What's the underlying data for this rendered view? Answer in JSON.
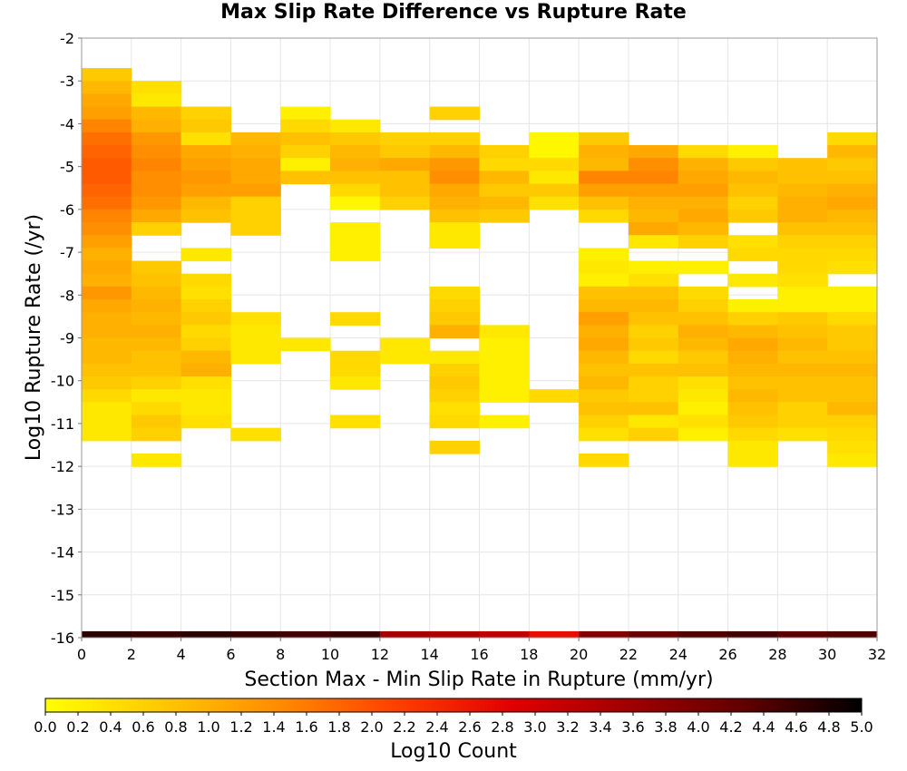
{
  "chart_data": {
    "type": "heatmap",
    "title": "Max Slip Rate Difference vs Rupture Rate",
    "xlabel": "Section Max - Min Slip Rate in Rupture (mm/yr)",
    "ylabel": "Log10 Rupture Rate (/yr)",
    "colorbar_label": "Log10 Count",
    "xlim": [
      0,
      32
    ],
    "ylim": [
      -16,
      -2
    ],
    "xticks": [
      0,
      2,
      4,
      6,
      8,
      10,
      12,
      14,
      16,
      18,
      20,
      22,
      24,
      26,
      28,
      30,
      32
    ],
    "yticks": [
      -2,
      -3,
      -4,
      -5,
      -6,
      -7,
      -8,
      -9,
      -10,
      -11,
      -12,
      -13,
      -14,
      -15,
      -16
    ],
    "clim": [
      0,
      5
    ],
    "colorbar_ticks": [
      0.0,
      0.2,
      0.4,
      0.6,
      0.8,
      1.0,
      1.2,
      1.4,
      1.6,
      1.8,
      2.0,
      2.2,
      2.4,
      2.6,
      2.8,
      3.0,
      3.2,
      3.4,
      3.6,
      3.8,
      4.0,
      4.2,
      4.4,
      4.6,
      4.8,
      5.0
    ],
    "colorbar_tick_labels": [
      "0.0",
      "0.2",
      "0.4",
      "0.6",
      "0.8",
      "1.0",
      "1.2",
      "1.4",
      "1.6",
      "1.8",
      "2.0",
      "2.2",
      "2.4",
      "2.6",
      "2.8",
      "3.0",
      "3.2",
      "3.4",
      "3.6",
      "3.8",
      "4.0",
      "4.2",
      "4.4",
      "4.6",
      "4.8",
      "5.0"
    ],
    "colormap": [
      "#ffff00",
      "#ffc800",
      "#ff8c00",
      "#ff4000",
      "#e00000",
      "#a00000",
      "#600000",
      "#000000"
    ],
    "grid": true,
    "y_bin": 0.3,
    "columns": [
      {
        "x0": 0,
        "x1": 2,
        "y_top": -2.7,
        "values": [
          0.7,
          0.9,
          1.1,
          1.2,
          1.5,
          1.7,
          1.8,
          1.9,
          1.9,
          1.8,
          1.7,
          1.5,
          1.4,
          1.2,
          1.0,
          1.1,
          1.0,
          1.3,
          1.1,
          1.0,
          1.0,
          0.9,
          0.9,
          0.8,
          0.7,
          0.5,
          0.3,
          0.3,
          0.3
        ]
      },
      {
        "x0": 2,
        "x1": 4,
        "y_top": -3.0,
        "values": [
          0.4,
          0.3,
          0.9,
          1.0,
          1.3,
          1.4,
          1.5,
          1.4,
          1.4,
          1.3,
          1.1,
          0.6,
          null,
          null,
          0.7,
          0.8,
          0.9,
          1.0,
          0.9,
          1.0,
          0.9,
          0.8,
          0.8,
          0.6,
          0.3,
          0.5,
          0.7,
          0.6,
          null,
          0.3
        ]
      },
      {
        "x0": 4,
        "x1": 6,
        "y_top": -3.6,
        "values": [
          0.6,
          0.7,
          0.4,
          1.1,
          1.2,
          1.3,
          1.2,
          0.9,
          0.8,
          null,
          null,
          0.3,
          null,
          0.5,
          0.4,
          0.6,
          0.7,
          0.5,
          0.6,
          0.9,
          1.0,
          0.4,
          0.3,
          0.3,
          0.4
        ]
      },
      {
        "x0": 6,
        "x1": 8,
        "y_top": -4.2,
        "values": [
          0.9,
          1.0,
          1.1,
          1.1,
          1.2,
          0.6,
          0.6,
          0.6,
          null,
          null,
          null,
          null,
          null,
          null,
          0.4,
          0.3,
          0.3,
          0.3,
          null,
          null,
          null,
          null,
          null,
          0.4
        ]
      },
      {
        "x0": 8,
        "x1": 10,
        "y_top": -3.6,
        "values": [
          0.2,
          0.5,
          0.8,
          0.6,
          0.2,
          0.8,
          null,
          null,
          null,
          null,
          null,
          null,
          null,
          null,
          null,
          null,
          null,
          null,
          0.3
        ]
      },
      {
        "x0": 10,
        "x1": 12,
        "y_top": -3.9,
        "values": [
          0.3,
          0.7,
          0.9,
          1.0,
          0.8,
          0.5,
          0.1,
          null,
          0.2,
          0.2,
          0.2,
          null,
          null,
          null,
          null,
          0.5,
          null,
          null,
          0.5,
          0.5,
          0.3,
          null,
          null,
          0.4
        ]
      },
      {
        "x0": 12,
        "x1": 14,
        "y_top": -4.2,
        "values": [
          0.6,
          0.7,
          1.1,
          0.8,
          0.8,
          0.6,
          null,
          null,
          null,
          null,
          null,
          null,
          null,
          null,
          null,
          null,
          0.3,
          0.3
        ]
      },
      {
        "x0": 14,
        "x1": 16,
        "y_top": -3.6,
        "values": [
          0.6,
          null,
          0.6,
          0.9,
          1.3,
          1.4,
          1.1,
          1.0,
          0.8,
          0.3,
          0.3,
          null,
          null,
          null,
          0.5,
          0.6,
          0.7,
          1.0,
          null,
          0.3,
          0.6,
          0.7,
          0.6,
          0.4,
          0.5,
          null,
          0.6
        ]
      },
      {
        "x0": 16,
        "x1": 18,
        "y_top": -4.5,
        "values": [
          0.6,
          0.5,
          0.9,
          0.7,
          0.9,
          0.7,
          null,
          null,
          null,
          null,
          null,
          null,
          null,
          null,
          0.3,
          0.2,
          0.2,
          0.2,
          0.2,
          0.2,
          null,
          0.2
        ]
      },
      {
        "x0": 18,
        "x1": 20,
        "y_top": -4.2,
        "values": [
          0.1,
          0.1,
          0.5,
          0.3,
          0.7,
          0.4,
          null,
          null,
          null,
          null,
          null,
          null,
          null,
          null,
          null,
          null,
          null,
          null,
          null,
          null,
          0.5
        ]
      },
      {
        "x0": 20,
        "x1": 22,
        "y_top": -4.2,
        "values": [
          0.7,
          1.0,
          0.9,
          1.5,
          1.2,
          0.8,
          0.5,
          null,
          null,
          0.2,
          0.3,
          0.2,
          0.8,
          0.9,
          1.2,
          1.0,
          1.1,
          0.9,
          0.8,
          0.9,
          0.7,
          0.8,
          0.6,
          0.4,
          null,
          0.5
        ]
      },
      {
        "x0": 22,
        "x1": 24,
        "y_top": -4.5,
        "values": [
          1.1,
          1.4,
          1.5,
          1.2,
          1.0,
          0.9,
          1.1,
          0.3,
          null,
          0.2,
          0.4,
          0.8,
          0.9,
          0.8,
          0.6,
          0.7,
          0.5,
          0.8,
          0.6,
          0.6,
          0.8,
          0.3,
          0.6
        ]
      },
      {
        "x0": 24,
        "x1": 26,
        "y_top": -4.5,
        "values": [
          0.5,
          1.0,
          1.1,
          1.2,
          1.0,
          1.1,
          0.9,
          0.6,
          null,
          0.2,
          null,
          0.5,
          0.6,
          0.8,
          1.0,
          0.9,
          0.7,
          0.8,
          0.4,
          0.3,
          0.2,
          0.4,
          0.2
        ]
      },
      {
        "x0": 26,
        "x1": 28,
        "y_top": -4.5,
        "values": [
          0.2,
          0.7,
          0.9,
          0.8,
          0.6,
          0.7,
          null,
          0.4,
          0.5,
          null,
          0.3,
          null,
          0.2,
          0.6,
          0.9,
          1.1,
          1.0,
          0.9,
          0.8,
          0.9,
          0.8,
          0.7,
          0.5,
          0.3,
          0.3
        ]
      },
      {
        "x0": 28,
        "x1": 30,
        "y_top": -4.8,
        "values": [
          0.8,
          0.8,
          0.9,
          1.0,
          1.0,
          0.8,
          0.6,
          0.5,
          0.5,
          0.4,
          0.2,
          0.2,
          0.7,
          0.8,
          0.9,
          0.8,
          0.9,
          0.8,
          0.8,
          0.6,
          0.6,
          0.4
        ]
      },
      {
        "x0": 30,
        "x1": 32,
        "y_top": -4.2,
        "values": [
          0.5,
          0.9,
          0.7,
          0.8,
          1.0,
          1.1,
          0.9,
          0.8,
          0.6,
          0.5,
          0.4,
          null,
          0.2,
          0.2,
          0.5,
          0.7,
          0.7,
          0.8,
          0.9,
          0.8,
          0.8,
          0.9,
          0.6,
          0.5,
          0.4,
          0.3
        ]
      }
    ],
    "bottom_row": {
      "y_top": -15.85,
      "y_bottom": -16,
      "values": [
        4.7,
        4.6,
        4.7,
        4.6,
        4.5,
        4.6,
        3.5,
        3.4,
        3.2,
        2.7,
        3.9,
        4.2,
        4.4,
        4.5,
        4.3,
        4.4
      ]
    }
  }
}
